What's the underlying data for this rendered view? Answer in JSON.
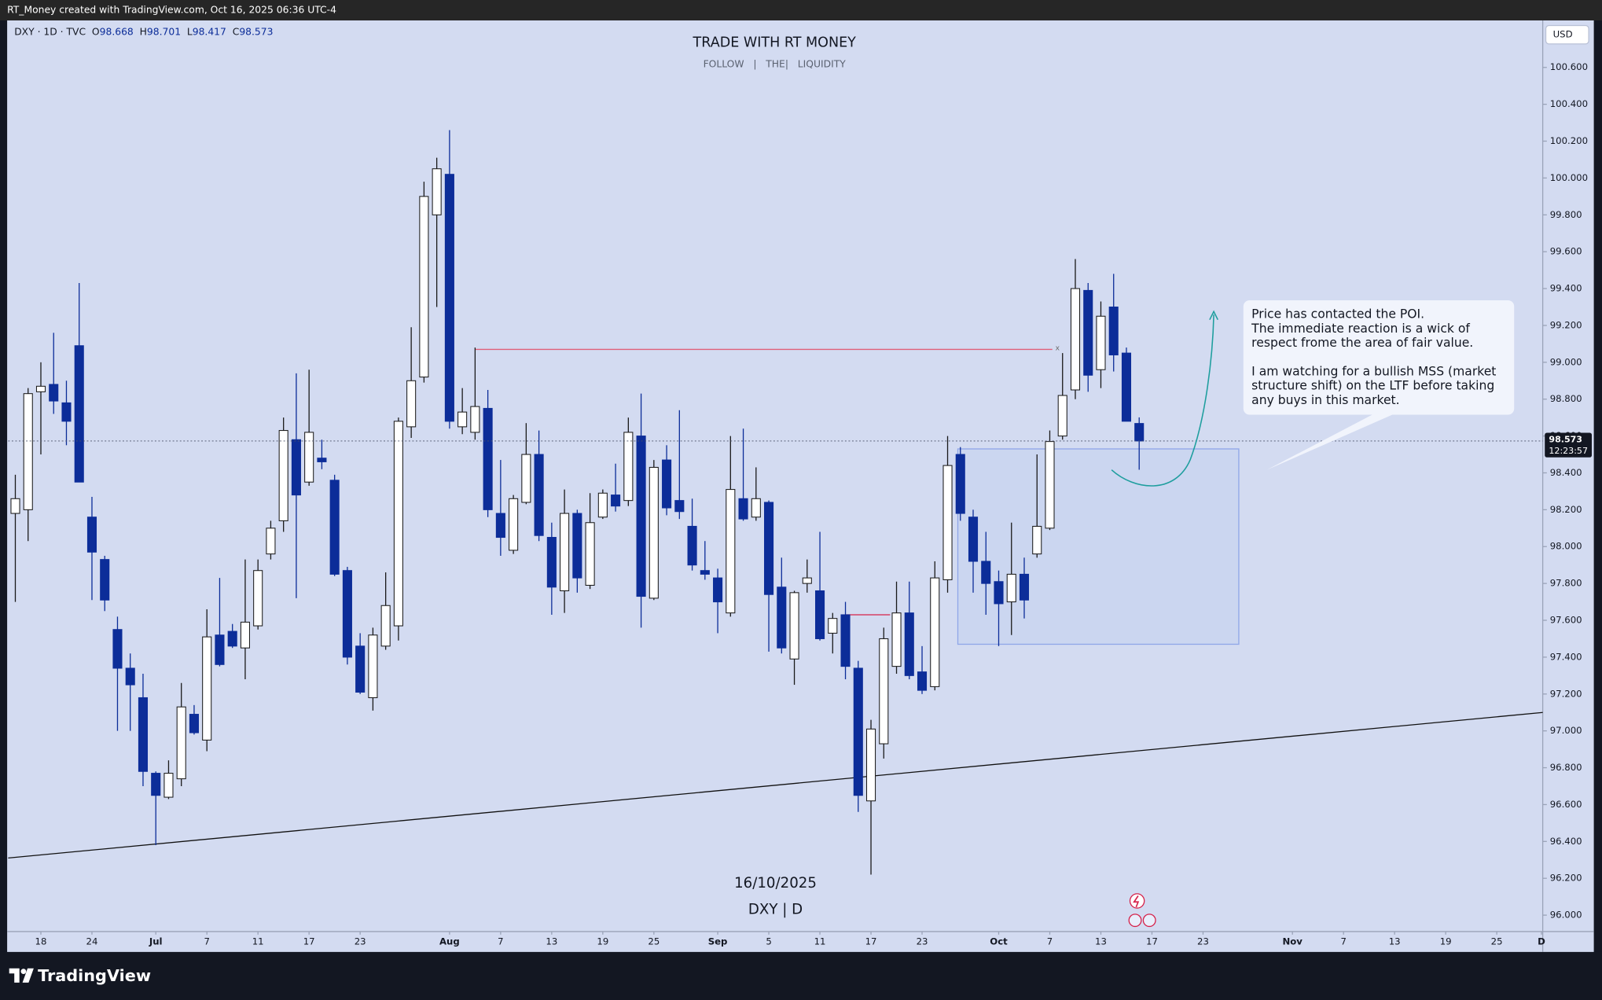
{
  "header": "RT_Money created with TradingView.com, Oct 16, 2025 06:36 UTC-4",
  "brand": "TradingView",
  "chart_data": {
    "type": "candlestick",
    "title": "TRADE WITH RT MONEY",
    "subtitle": "FOLLOW   |   THE|   LIQUIDITY",
    "symbol": "DXY · 1D · TVC",
    "ohlc_labels": [
      "O",
      "H",
      "L",
      "C"
    ],
    "watermark": [
      "16/10/2025",
      "DXY | D"
    ],
    "currency": "USD",
    "countdown": "12:23:57",
    "up_color": "#ffffff",
    "down_color": "#0c2d99",
    "open": [
      98.18,
      98.2,
      98.84,
      98.88,
      98.78,
      99.09,
      98.16,
      97.93,
      97.55,
      97.34,
      97.18,
      96.77,
      96.64,
      96.74,
      97.09,
      96.95,
      97.52,
      97.54,
      97.45,
      97.57,
      97.96,
      98.14,
      98.58,
      98.35,
      98.48,
      98.36,
      97.87,
      97.46,
      97.18,
      97.46,
      97.57,
      98.65,
      98.92,
      99.8,
      100.02,
      98.65,
      98.62,
      98.75,
      98.18,
      97.98,
      98.24,
      98.5,
      98.05,
      97.76,
      98.18,
      97.79,
      98.16,
      98.28,
      98.25,
      98.6,
      97.72,
      98.47,
      98.25,
      98.11,
      97.87,
      97.83,
      97.64,
      98.26,
      98.16,
      98.24,
      97.78,
      97.39,
      97.8,
      97.76,
      97.53,
      97.63,
      97.34,
      96.62,
      96.93,
      97.35,
      97.64,
      97.32,
      97.24,
      97.82,
      98.5,
      98.16,
      97.92,
      97.81,
      97.7,
      97.85,
      97.96,
      98.1,
      98.6,
      98.85,
      99.39,
      98.96,
      99.3,
      99.05,
      98.668
    ],
    "high": [
      98.39,
      98.86,
      99.0,
      99.16,
      98.9,
      99.43,
      98.27,
      97.95,
      97.62,
      97.42,
      97.31,
      96.78,
      96.84,
      97.26,
      97.14,
      97.66,
      97.83,
      97.58,
      97.93,
      97.93,
      98.14,
      98.7,
      98.94,
      98.96,
      98.58,
      98.39,
      97.89,
      97.53,
      97.56,
      97.86,
      98.7,
      99.19,
      99.98,
      100.11,
      100.26,
      98.86,
      99.08,
      98.85,
      98.47,
      98.28,
      98.67,
      98.63,
      98.13,
      98.31,
      98.2,
      98.29,
      98.31,
      98.45,
      98.7,
      98.83,
      98.47,
      98.55,
      98.74,
      98.26,
      98.03,
      97.88,
      98.6,
      98.64,
      98.43,
      98.25,
      97.94,
      97.76,
      97.93,
      98.08,
      97.64,
      97.7,
      97.38,
      97.06,
      97.56,
      97.81,
      97.81,
      97.46,
      97.92,
      98.6,
      98.54,
      98.2,
      98.08,
      97.87,
      98.13,
      97.94,
      98.5,
      98.63,
      99.05,
      99.56,
      99.43,
      99.33,
      99.48,
      99.08,
      98.701
    ],
    "low": [
      97.7,
      98.03,
      98.5,
      98.72,
      98.55,
      98.35,
      97.71,
      97.65,
      97.0,
      97.0,
      96.7,
      96.38,
      96.63,
      96.7,
      96.98,
      96.89,
      97.35,
      97.45,
      97.28,
      97.55,
      97.93,
      98.08,
      97.72,
      98.33,
      98.42,
      97.84,
      97.36,
      97.2,
      97.11,
      97.44,
      97.49,
      98.59,
      98.89,
      99.3,
      98.64,
      98.61,
      98.58,
      98.16,
      97.95,
      97.96,
      98.23,
      98.03,
      97.63,
      97.64,
      97.75,
      97.77,
      98.15,
      98.19,
      98.22,
      97.56,
      97.71,
      98.17,
      98.15,
      97.87,
      97.82,
      97.53,
      97.62,
      98.14,
      98.14,
      97.43,
      97.42,
      97.25,
      97.75,
      97.49,
      97.42,
      97.28,
      96.56,
      96.22,
      96.85,
      97.31,
      97.28,
      97.2,
      97.22,
      97.75,
      98.14,
      97.75,
      97.63,
      97.46,
      97.52,
      97.61,
      97.94,
      98.09,
      98.58,
      98.8,
      98.84,
      98.86,
      98.95,
      98.7,
      98.417
    ],
    "close": [
      98.26,
      98.83,
      98.87,
      98.79,
      98.68,
      98.35,
      97.97,
      97.71,
      97.34,
      97.25,
      96.78,
      96.65,
      96.77,
      97.13,
      96.99,
      97.51,
      97.36,
      97.46,
      97.59,
      97.87,
      98.1,
      98.63,
      98.28,
      98.62,
      98.46,
      97.85,
      97.4,
      97.21,
      97.52,
      97.68,
      98.68,
      98.9,
      99.9,
      100.05,
      98.68,
      98.73,
      98.76,
      98.2,
      98.05,
      98.26,
      98.5,
      98.06,
      97.78,
      98.18,
      97.83,
      98.13,
      98.29,
      98.22,
      98.62,
      97.73,
      98.43,
      98.21,
      98.19,
      97.9,
      97.85,
      97.7,
      98.31,
      98.15,
      98.26,
      97.74,
      97.45,
      97.75,
      97.83,
      97.5,
      97.61,
      97.35,
      96.65,
      97.01,
      97.5,
      97.64,
      97.3,
      97.22,
      97.83,
      98.44,
      98.18,
      97.92,
      97.8,
      97.69,
      97.85,
      97.71,
      98.11,
      98.57,
      98.82,
      99.4,
      98.93,
      99.25,
      99.04,
      98.68,
      98.573
    ],
    "xlim": [
      -0.56,
      119.6
    ],
    "xticks": [
      {
        "value": 2,
        "label": "18"
      },
      {
        "value": 6,
        "label": "24"
      },
      {
        "value": 11,
        "label": "Jul"
      },
      {
        "value": 15,
        "label": "7"
      },
      {
        "value": 19,
        "label": "11"
      },
      {
        "value": 23,
        "label": "17"
      },
      {
        "value": 27,
        "label": "23"
      },
      {
        "value": 34,
        "label": "Aug"
      },
      {
        "value": 38,
        "label": "7"
      },
      {
        "value": 42,
        "label": "13"
      },
      {
        "value": 46,
        "label": "19"
      },
      {
        "value": 50,
        "label": "25"
      },
      {
        "value": 55,
        "label": "Sep"
      },
      {
        "value": 59,
        "label": "5"
      },
      {
        "value": 63,
        "label": "11"
      },
      {
        "value": 67,
        "label": "17"
      },
      {
        "value": 71,
        "label": "23"
      },
      {
        "value": 77,
        "label": "Oct"
      },
      {
        "value": 81,
        "label": "7"
      },
      {
        "value": 85,
        "label": "13"
      },
      {
        "value": 89,
        "label": "17"
      },
      {
        "value": 93,
        "label": "23"
      },
      {
        "value": 100,
        "label": "Nov"
      },
      {
        "value": 104,
        "label": "7"
      },
      {
        "value": 108,
        "label": "13"
      },
      {
        "value": 112,
        "label": "19"
      },
      {
        "value": 116,
        "label": "25"
      },
      {
        "value": 119.5,
        "label": "D"
      }
    ],
    "ylim": [
      95.911,
      100.855
    ],
    "yticks": [
      {
        "value": 96.0,
        "label": "96.000"
      },
      {
        "value": 96.2,
        "label": "96.200"
      },
      {
        "value": 96.4,
        "label": "96.400"
      },
      {
        "value": 96.6,
        "label": "96.600"
      },
      {
        "value": 96.8,
        "label": "96.800"
      },
      {
        "value": 97.0,
        "label": "97.000"
      },
      {
        "value": 97.2,
        "label": "97.200"
      },
      {
        "value": 97.4,
        "label": "97.400"
      },
      {
        "value": 97.6,
        "label": "97.600"
      },
      {
        "value": 97.8,
        "label": "97.800"
      },
      {
        "value": 98.0,
        "label": "98.000"
      },
      {
        "value": 98.2,
        "label": "98.200"
      },
      {
        "value": 98.4,
        "label": "98.400"
      },
      {
        "value": 98.6,
        "label": "98.600"
      },
      {
        "value": 98.8,
        "label": "98.800"
      },
      {
        "value": 99.0,
        "label": "99.000"
      },
      {
        "value": 99.2,
        "label": "99.200"
      },
      {
        "value": 99.4,
        "label": "99.400"
      },
      {
        "value": 99.6,
        "label": "99.600"
      },
      {
        "value": 99.8,
        "label": "99.800"
      },
      {
        "value": 100.0,
        "label": "100.000"
      },
      {
        "value": 100.2,
        "label": "100.200"
      },
      {
        "value": 100.4,
        "label": "100.400"
      },
      {
        "value": 100.6,
        "label": "100.600"
      }
    ],
    "drawings": [
      {
        "type": "trendline",
        "color": "#111111",
        "x": [
          -0.56,
          119.6
        ],
        "y": [
          96.31,
          97.1
        ]
      },
      {
        "type": "hline",
        "color": "#e0607a",
        "x": [
          36,
          81.2
        ],
        "y": [
          99.07,
          99.07
        ],
        "marker": "x"
      },
      {
        "type": "hline",
        "color": "#d6224a",
        "x": [
          65,
          68.5
        ],
        "y": [
          97.63,
          97.63
        ]
      },
      {
        "type": "box",
        "color": "#8fa6e8",
        "x": [
          73.8,
          95.8
        ],
        "y": [
          97.47,
          98.53
        ]
      }
    ],
    "callout": [
      [
        "Price has contacted the POI.",
        "The immediate reaction is a wick of",
        "respect frome the area of fair value."
      ],
      [
        "I am watching for a bullish MSS (market",
        "structure shift) on the LTF before taking",
        "any buys in this market."
      ]
    ]
  }
}
